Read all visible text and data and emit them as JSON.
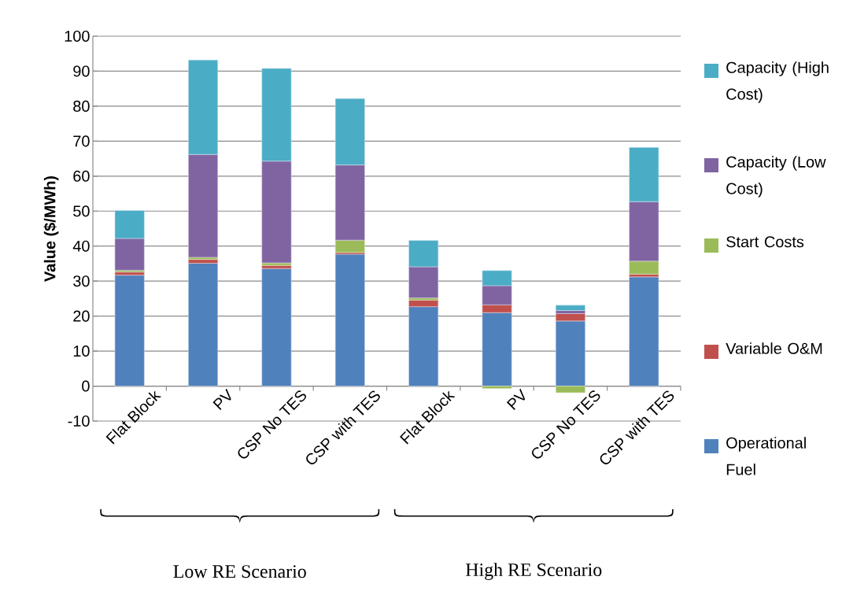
{
  "chart_data": {
    "type": "bar",
    "stacked": true,
    "ylabel": "Value ($/MWh)",
    "categories": [
      "Flat Block",
      "PV",
      "CSP No TES",
      "CSP with TES",
      "Flat Block",
      "PV",
      "CSP No TES",
      "CSP with TES"
    ],
    "series": [
      {
        "name": "Operational Fuel",
        "color": "#4f81bd",
        "values": [
          31.7,
          35.1,
          33.6,
          37.7,
          22.7,
          21.0,
          18.6,
          31.2
        ]
      },
      {
        "name": "Variable O&M",
        "color": "#c0504d",
        "values": [
          0.9,
          1.1,
          0.9,
          0.5,
          1.9,
          2.2,
          2.1,
          0.8
        ]
      },
      {
        "name": "Start Costs",
        "color": "#9bbb59",
        "values": [
          0.5,
          0.6,
          0.7,
          3.5,
          0.6,
          -0.7,
          -1.9,
          3.7
        ]
      },
      {
        "name": "Capacity (Low Cost)",
        "color": "#8064a2",
        "values": [
          9.1,
          29.4,
          29.1,
          21.5,
          8.9,
          5.5,
          0.9,
          17.0
        ]
      },
      {
        "name": "Capacity (High Cost)",
        "color": "#4bacc6",
        "values": [
          8.0,
          27.0,
          26.5,
          19.0,
          7.5,
          4.3,
          1.5,
          15.5
        ]
      }
    ],
    "ylim": [
      -10,
      100
    ],
    "yticks": [
      -10,
      0,
      10,
      20,
      30,
      40,
      50,
      60,
      70,
      80,
      90,
      100
    ],
    "grid": "y",
    "legend": "right",
    "annotations": [
      "Low RE Scenario",
      "High RE Scenario"
    ]
  }
}
